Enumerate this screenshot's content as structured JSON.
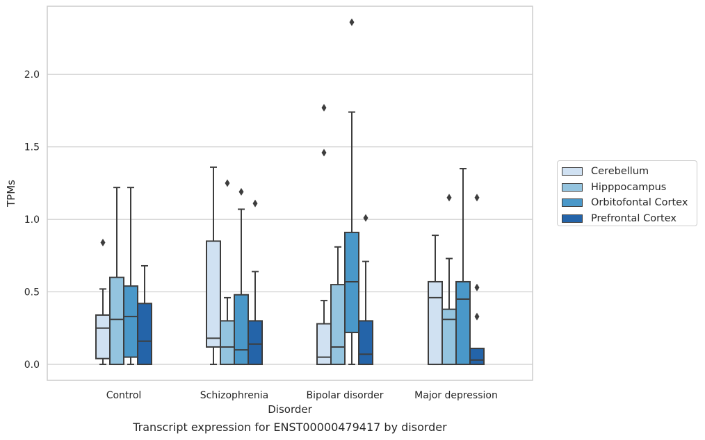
{
  "figure": {
    "caption": "Transcript expression for ENST00000479417 by disorder"
  },
  "chart_data": {
    "type": "box",
    "xlabel": "Disorder",
    "ylabel": "TPMs",
    "ylim": [
      -0.11,
      2.47
    ],
    "yticks": [
      "0.0",
      "0.5",
      "1.0",
      "1.5",
      "2.0"
    ],
    "grid": "horizontal",
    "legend_position": "right",
    "categories": [
      "Control",
      "Schizophrenia",
      "Bipolar disorder",
      "Major depression"
    ],
    "series": [
      {
        "name": "Cerebellum",
        "color": "#d0e1f2",
        "boxes": [
          {
            "whisker_low": 0.0,
            "q1": 0.04,
            "median": 0.25,
            "q3": 0.34,
            "whisker_high": 0.52,
            "outliers": [
              0.84
            ]
          },
          {
            "whisker_low": 0.0,
            "q1": 0.12,
            "median": 0.18,
            "q3": 0.85,
            "whisker_high": 1.36,
            "outliers": []
          },
          {
            "whisker_low": 0.0,
            "q1": 0.0,
            "median": 0.05,
            "q3": 0.28,
            "whisker_high": 0.44,
            "outliers": [
              1.46,
              1.77
            ]
          },
          {
            "whisker_low": 0.0,
            "q1": 0.0,
            "median": 0.46,
            "q3": 0.57,
            "whisker_high": 0.89,
            "outliers": []
          }
        ]
      },
      {
        "name": "Hipppocampus",
        "color": "#94c4df",
        "boxes": [
          {
            "whisker_low": 0.0,
            "q1": 0.0,
            "median": 0.31,
            "q3": 0.6,
            "whisker_high": 1.22,
            "outliers": []
          },
          {
            "whisker_low": 0.0,
            "q1": 0.0,
            "median": 0.12,
            "q3": 0.3,
            "whisker_high": 0.46,
            "outliers": [
              1.25
            ]
          },
          {
            "whisker_low": 0.0,
            "q1": 0.0,
            "median": 0.12,
            "q3": 0.55,
            "whisker_high": 0.81,
            "outliers": []
          },
          {
            "whisker_low": 0.0,
            "q1": 0.0,
            "median": 0.31,
            "q3": 0.38,
            "whisker_high": 0.73,
            "outliers": [
              1.15
            ]
          }
        ]
      },
      {
        "name": "Orbitofontal Cortex",
        "color": "#4a98c9",
        "boxes": [
          {
            "whisker_low": 0.0,
            "q1": 0.05,
            "median": 0.33,
            "q3": 0.54,
            "whisker_high": 1.22,
            "outliers": []
          },
          {
            "whisker_low": 0.0,
            "q1": 0.0,
            "median": 0.1,
            "q3": 0.48,
            "whisker_high": 1.07,
            "outliers": [
              1.19
            ]
          },
          {
            "whisker_low": 0.0,
            "q1": 0.22,
            "median": 0.57,
            "q3": 0.91,
            "whisker_high": 1.74,
            "outliers": [
              2.36
            ]
          },
          {
            "whisker_low": 0.0,
            "q1": 0.0,
            "median": 0.45,
            "q3": 0.57,
            "whisker_high": 1.35,
            "outliers": []
          }
        ]
      },
      {
        "name": "Prefrontal Cortex",
        "color": "#2464a9",
        "boxes": [
          {
            "whisker_low": 0.0,
            "q1": 0.0,
            "median": 0.16,
            "q3": 0.42,
            "whisker_high": 0.68,
            "outliers": []
          },
          {
            "whisker_low": 0.0,
            "q1": 0.0,
            "median": 0.14,
            "q3": 0.3,
            "whisker_high": 0.64,
            "outliers": [
              1.11
            ]
          },
          {
            "whisker_low": 0.0,
            "q1": 0.0,
            "median": 0.07,
            "q3": 0.3,
            "whisker_high": 0.71,
            "outliers": [
              1.01
            ]
          },
          {
            "whisker_low": 0.0,
            "q1": 0.0,
            "median": 0.03,
            "q3": 0.11,
            "whisker_high": 0.11,
            "outliers": [
              0.33,
              0.53,
              1.15
            ]
          }
        ]
      }
    ]
  }
}
